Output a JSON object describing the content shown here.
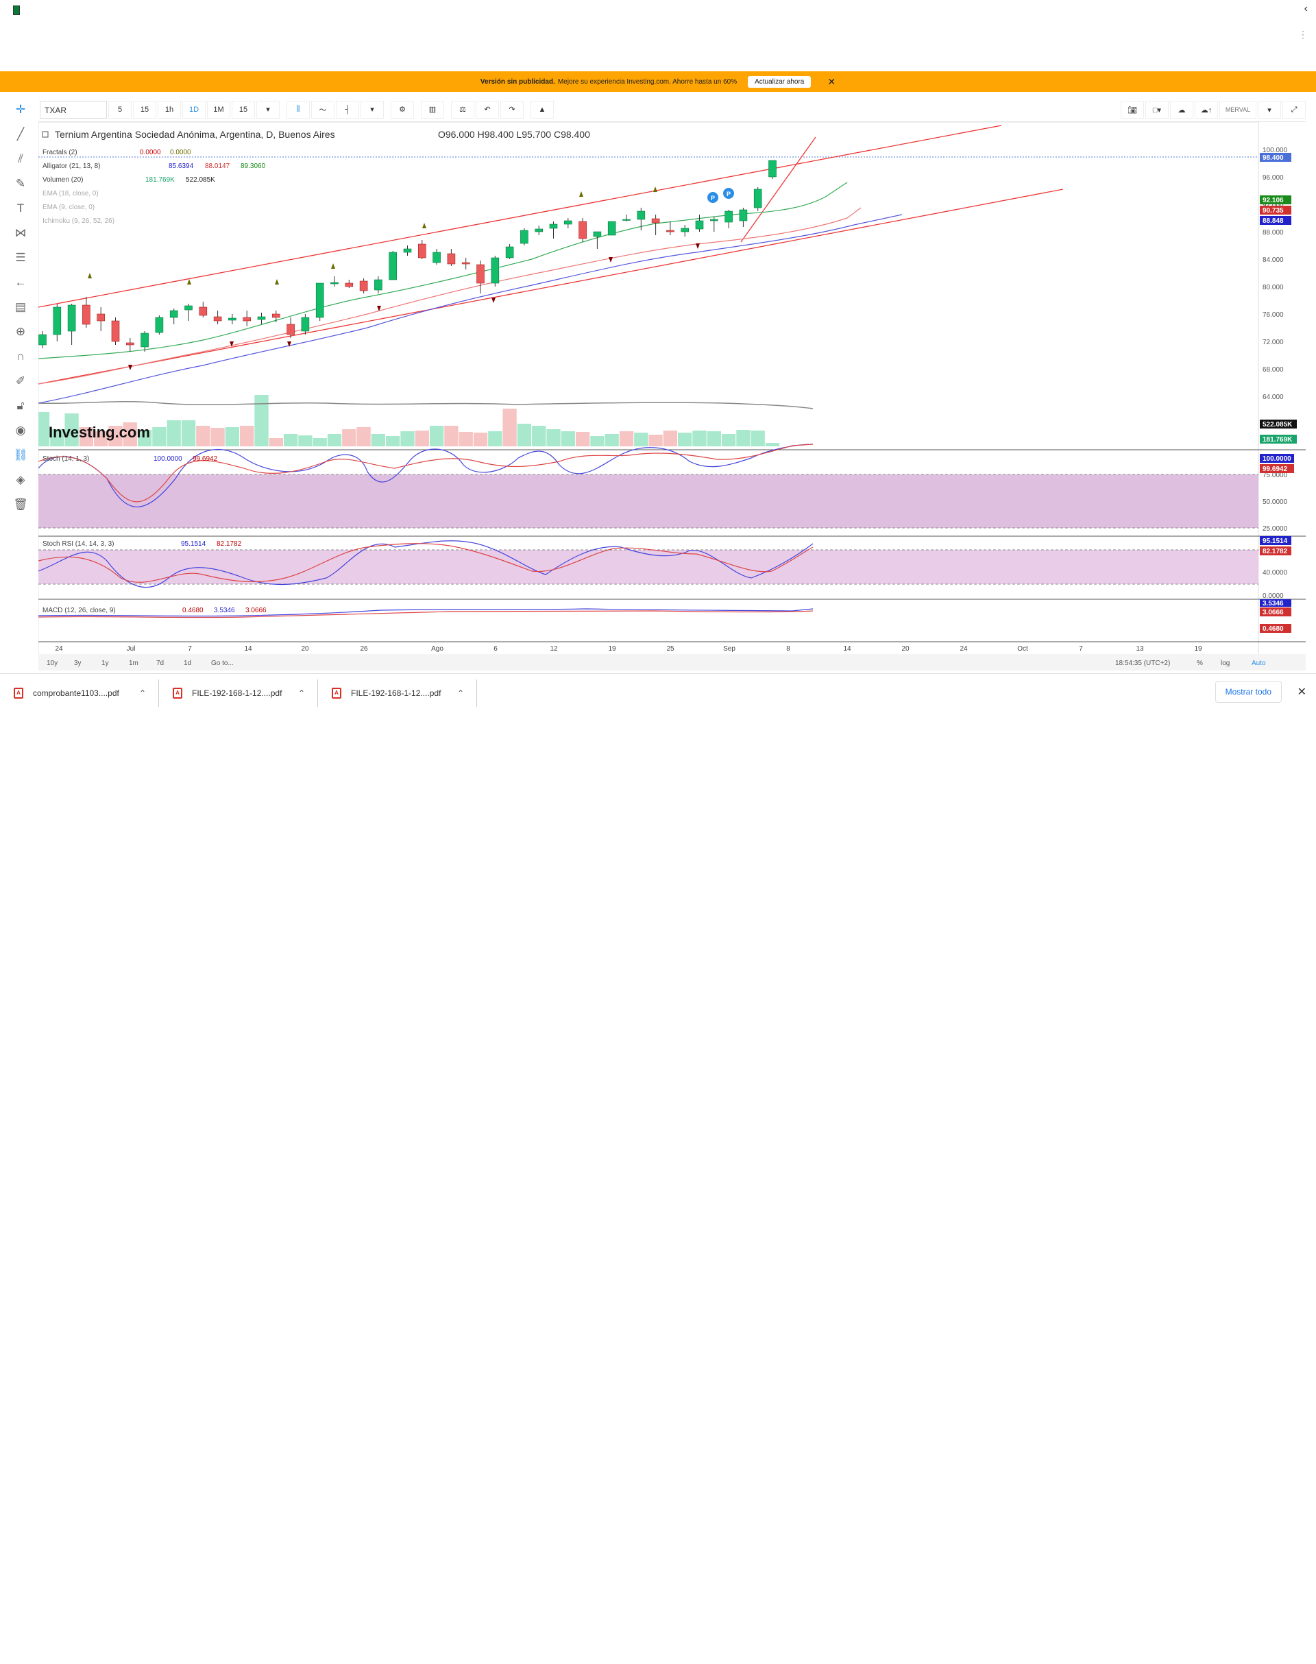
{
  "browser": {
    "chevron": "‹",
    "menu_dots": "⋮"
  },
  "ad_banner": {
    "bold_text": "Versión sin publicidad.",
    "text": "Mejore su experiencia Investing.com. Ahorre hasta un 60%",
    "button_label": "Actualizar ahora",
    "close_glyph": "✕"
  },
  "toolbar": {
    "symbol": "TXAR",
    "intervals": [
      "5",
      "15",
      "1h",
      "1D",
      "1M",
      "15"
    ],
    "active_interval": "1D",
    "exchange": "MERVAL"
  },
  "legend": {
    "title": "Ternium Argentina Sociedad Anónima, Argentina, D, Buenos Aires",
    "ohlc": {
      "O": "96.000",
      "H": "98.400",
      "L": "95.700",
      "C": "98.400"
    },
    "indicators": [
      {
        "name": "Fractals (2)",
        "values": [
          "0.0000",
          "0.0000"
        ],
        "colors": [
          "#c00000",
          "#6b6b00"
        ]
      },
      {
        "name": "Alligator (21, 13, 8)",
        "values": [
          "85.6394",
          "88.0147",
          "89.3060"
        ],
        "colors": [
          "#2222cc",
          "#d03030",
          "#1a8a1a"
        ]
      },
      {
        "name": "Volumen (20)",
        "values": [
          "181.769K",
          "522.085K"
        ],
        "colors": [
          "#1aa36a",
          "#222222"
        ]
      },
      {
        "name": "EMA (18, close, 0)",
        "values": [],
        "colors": []
      },
      {
        "name": "EMA (9, close, 0)",
        "values": [],
        "colors": []
      },
      {
        "name": "Ichimoku (9, 26, 52, 26)",
        "values": [],
        "colors": []
      }
    ]
  },
  "price_axis": {
    "ticks": [
      "100.000",
      "96.000",
      "92.000",
      "88.000",
      "84.000",
      "80.000",
      "76.000",
      "72.000",
      "68.000",
      "64.000"
    ],
    "labels": [
      {
        "text": "98.400",
        "bg": "#4a6fd8"
      },
      {
        "text": "92.106",
        "bg": "#1a8a1a"
      },
      {
        "text": "90.735",
        "bg": "#d03030"
      },
      {
        "text": "88.848",
        "bg": "#2222cc"
      },
      {
        "text": "522.085K",
        "bg": "#111111"
      },
      {
        "text": "181.769K",
        "bg": "#1aa36a"
      }
    ]
  },
  "panes": {
    "stoch": {
      "title": "Stoch (14, 1, 3)",
      "values": [
        "100.0000",
        "99.6942"
      ],
      "ticks": [
        "75.0000",
        "50.0000",
        "25.0000"
      ]
    },
    "stoch_rsi": {
      "title": "Stoch RSI (14, 14, 3, 3)",
      "values": [
        "95.1514",
        "82.1782"
      ],
      "ticks": [
        "40.0000",
        "0.0000"
      ]
    },
    "macd": {
      "title": "MACD (12, 26, close, 9)",
      "values": [
        "0.4680",
        "3.5346",
        "3.0666"
      ]
    }
  },
  "x_axis": {
    "labels": [
      "24",
      "Jul",
      "7",
      "14",
      "20",
      "26",
      "Ago",
      "6",
      "12",
      "19",
      "25",
      "Sep",
      "8",
      "14",
      "20",
      "24",
      "Oct",
      "7",
      "13",
      "19"
    ]
  },
  "bottom_bar": {
    "ranges": [
      "10y",
      "3y",
      "1y",
      "1m",
      "7d",
      "1d",
      "Go to..."
    ],
    "time": "18:54:35 (UTC+2)",
    "options": [
      "%",
      "log",
      "Auto"
    ]
  },
  "watermark": "Investing.com",
  "chart_data": {
    "type": "candlestick",
    "title": "Ternium Argentina Sociedad Anónima, Argentina, D, Buenos Aires",
    "ylim": [
      62,
      102
    ],
    "candles": [
      [
        71.5,
        73.5,
        71,
        73
      ],
      [
        73,
        77.5,
        72,
        77
      ],
      [
        73.5,
        77.5,
        71.5,
        77.3
      ],
      [
        77.3,
        78.5,
        74,
        74.5
      ],
      [
        76,
        77,
        73.5,
        75
      ],
      [
        75,
        75.5,
        71.5,
        72
      ],
      [
        71.8,
        72.5,
        70.5,
        71.5
      ],
      [
        71.2,
        73.5,
        70.5,
        73.2
      ],
      [
        73.3,
        75.8,
        73,
        75.5
      ],
      [
        75.5,
        76.8,
        74.5,
        76.5
      ],
      [
        76.6,
        77.5,
        75,
        77.2
      ],
      [
        77,
        77.8,
        75.5,
        75.8
      ],
      [
        75.6,
        76.5,
        74.5,
        75
      ],
      [
        75.1,
        76,
        74.5,
        75.4
      ],
      [
        75.5,
        76.5,
        74.2,
        75
      ],
      [
        75.2,
        76.2,
        74.5,
        75.6
      ],
      [
        76,
        76.5,
        74.8,
        75.5
      ],
      [
        74.5,
        75.5,
        72.5,
        73
      ],
      [
        73.5,
        76,
        73,
        75.5
      ],
      [
        75.5,
        80.5,
        75,
        80.5
      ],
      [
        80.4,
        81.5,
        80,
        80.6
      ],
      [
        80.5,
        81,
        79.8,
        80
      ],
      [
        80.8,
        81.2,
        79,
        79.4
      ],
      [
        79.5,
        81.5,
        79,
        81
      ],
      [
        81,
        85.2,
        81,
        85
      ],
      [
        85,
        86,
        84.5,
        85.5
      ],
      [
        86.2,
        86.8,
        84,
        84.2
      ],
      [
        83.5,
        85.5,
        83.2,
        85
      ],
      [
        84.8,
        85.5,
        83,
        83.3
      ],
      [
        83.5,
        84.2,
        82.5,
        83.3
      ],
      [
        83.2,
        83.8,
        79,
        80.5
      ],
      [
        80.5,
        84.5,
        80,
        84.2
      ],
      [
        84.2,
        86.2,
        84,
        85.8
      ],
      [
        86.3,
        88.5,
        86,
        88.2
      ],
      [
        88,
        88.9,
        87.5,
        88.4
      ],
      [
        88.5,
        89.5,
        87,
        89.1
      ],
      [
        89.1,
        90,
        88.5,
        89.6
      ],
      [
        89.5,
        90,
        86.5,
        87
      ],
      [
        87.3,
        88,
        85.5,
        88
      ],
      [
        87.5,
        89.5,
        87.5,
        89.5
      ],
      [
        89.8,
        90.5,
        89.5,
        89.8
      ],
      [
        89.8,
        91.5,
        88.2,
        91
      ],
      [
        89.9,
        90.5,
        87.5,
        89.3
      ],
      [
        88.2,
        89.5,
        87.5,
        88
      ],
      [
        88,
        89,
        87.3,
        88.5
      ],
      [
        88.4,
        90.5,
        88,
        89.6
      ],
      [
        89.6,
        90.2,
        88,
        89.8
      ],
      [
        89.4,
        91.2,
        88.5,
        91
      ],
      [
        89.6,
        91.5,
        88.7,
        91.2
      ],
      [
        91.5,
        94.5,
        91,
        94.2
      ],
      [
        96,
        98.4,
        95.7,
        98.4
      ]
    ],
    "volume": {
      "ylim": [
        0,
        100
      ],
      "values": [
        50,
        25,
        48,
        28,
        22,
        30,
        35,
        24,
        28,
        38,
        38,
        30,
        27,
        28,
        30,
        75,
        12,
        18,
        16,
        12,
        18,
        25,
        28,
        18,
        15,
        22,
        23,
        30,
        30,
        21,
        20,
        22,
        55,
        33,
        30,
        25,
        22,
        21,
        15,
        18,
        22,
        20,
        17,
        23,
        20,
        23,
        22,
        18,
        24,
        23,
        5
      ],
      "up": [
        1,
        1,
        1,
        0,
        0,
        0,
        0,
        1,
        1,
        1,
        1,
        0,
        0,
        1,
        0,
        1,
        0,
        1,
        1,
        1,
        1,
        0,
        0,
        1,
        1,
        1,
        0,
        1,
        0,
        0,
        0,
        1,
        0,
        1,
        1,
        1,
        1,
        0,
        1,
        1,
        0,
        1,
        0,
        0,
        1,
        1,
        1,
        1,
        1,
        1,
        1
      ]
    }
  }
}
